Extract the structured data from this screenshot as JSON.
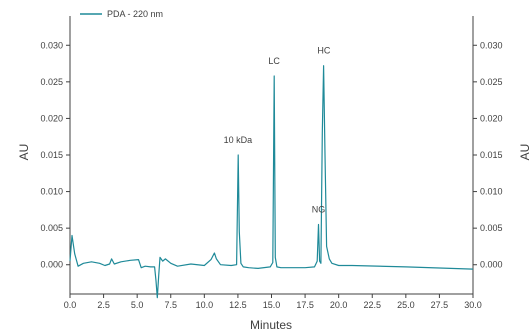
{
  "chart_data": {
    "type": "line",
    "legend": {
      "position": "top-left",
      "label": "PDA - 220 nm"
    },
    "xlabel": "Minutes",
    "ylabel": "AU",
    "ylabel_right": "AU",
    "xlim": [
      0,
      30
    ],
    "ylim": [
      -0.004,
      0.034
    ],
    "grid": false,
    "x_ticks": [
      "0.0",
      "2.5",
      "5.0",
      "7.5",
      "10.0",
      "12.5",
      "15.0",
      "17.5",
      "20.0",
      "22.5",
      "25.0",
      "27.5",
      "30.0"
    ],
    "y_ticks": [
      "0.000",
      "0.005",
      "0.010",
      "0.015",
      "0.020",
      "0.025",
      "0.030"
    ],
    "y_tick_values": [
      0,
      0.005,
      0.01,
      0.015,
      0.02,
      0.025,
      0.03
    ],
    "x_tick_values": [
      0,
      2.5,
      5,
      7.5,
      10,
      12.5,
      15,
      17.5,
      20,
      22.5,
      25,
      27.5,
      30
    ],
    "series": [
      {
        "name": "PDA - 220 nm",
        "color": "#1f8a99",
        "x": [
          0,
          0.15,
          0.35,
          0.6,
          1.0,
          1.6,
          2.2,
          2.6,
          2.95,
          3.1,
          3.3,
          3.8,
          4.5,
          5.1,
          5.3,
          5.6,
          6.0,
          6.3,
          6.4,
          6.5,
          6.6,
          6.7,
          6.9,
          7.1,
          7.5,
          8.0,
          9.0,
          10.0,
          10.5,
          10.75,
          10.9,
          11.2,
          12.0,
          12.4,
          12.52,
          12.6,
          12.72,
          12.9,
          13.3,
          14.0,
          14.9,
          15.1,
          15.2,
          15.28,
          15.4,
          15.7,
          16.5,
          17.5,
          18.2,
          18.4,
          18.5,
          18.58,
          18.68,
          18.78,
          18.88,
          18.98,
          19.1,
          19.3,
          19.5,
          20.0,
          21.0,
          25.0,
          30.0
        ],
        "y": [
          0.0005,
          0.004,
          0.0015,
          -0.0002,
          0.0002,
          0.0004,
          0.0002,
          -0.0001,
          0.0001,
          0.0008,
          0.0001,
          0.0004,
          0.0006,
          0.0007,
          -0.0004,
          -0.0002,
          -0.0003,
          -0.0003,
          -0.0022,
          -0.0045,
          -0.0015,
          0.001,
          0.0005,
          0.0008,
          0.0002,
          -0.0002,
          0.0001,
          -0.0001,
          0.0007,
          0.0016,
          0.0008,
          0.0,
          -0.0001,
          0.0,
          0.015,
          0.0045,
          0.0002,
          -0.0003,
          -0.0004,
          -0.0005,
          -0.0003,
          0.0003,
          0.0258,
          0.001,
          -0.0003,
          -0.0004,
          -0.0004,
          -0.0004,
          -0.0003,
          0.0005,
          0.0055,
          0.0005,
          0.0002,
          0.018,
          0.0272,
          0.015,
          0.0025,
          0.0008,
          0.0002,
          -0.0001,
          -0.0001,
          -0.0003,
          -0.0006
        ]
      }
    ],
    "annotations": [
      {
        "text": "10 kDa",
        "x": 12.5,
        "y": 0.015
      },
      {
        "text": "LC",
        "x": 15.2,
        "y": 0.0258
      },
      {
        "text": "NG",
        "x": 18.5,
        "y": 0.0055
      },
      {
        "text": "HC",
        "x": 18.9,
        "y": 0.0272
      }
    ]
  }
}
